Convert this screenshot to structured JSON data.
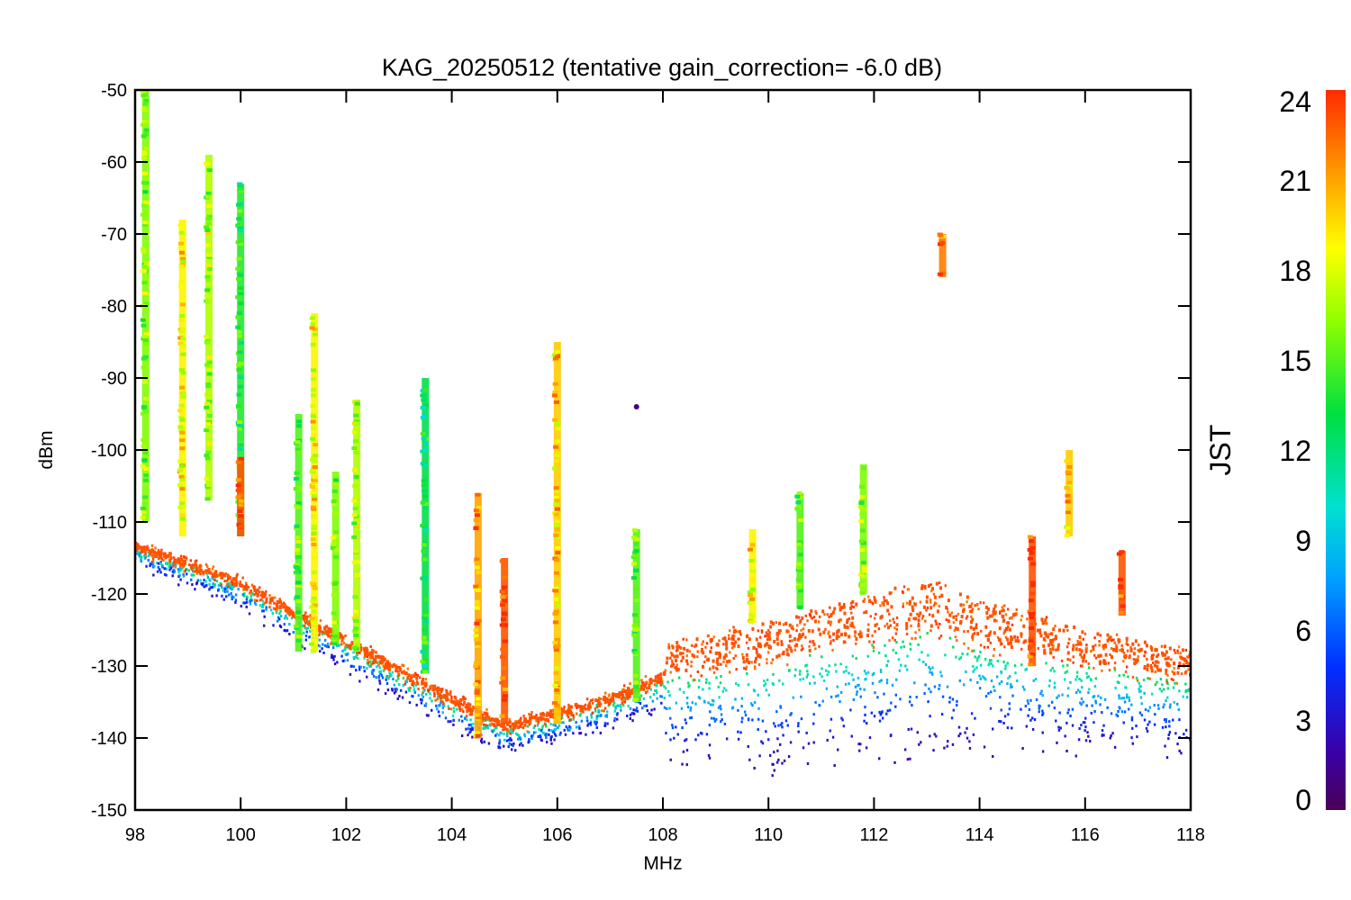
{
  "chart_data": {
    "type": "scatter",
    "title": "KAG_20250512 (tentative gain_correction= -6.0 dB)",
    "xlabel": "MHz",
    "ylabel": "dBm",
    "xlim": [
      98,
      118
    ],
    "ylim": [
      -150,
      -50
    ],
    "x_ticks": [
      "98",
      "100",
      "102",
      "104",
      "106",
      "108",
      "110",
      "112",
      "114",
      "116",
      "118"
    ],
    "y_ticks": [
      "-50",
      "-60",
      "-70",
      "-80",
      "-90",
      "-100",
      "-110",
      "-120",
      "-130",
      "-140",
      "-150"
    ],
    "grid": false,
    "colorbar": {
      "label": "JST",
      "range": [
        0,
        24
      ],
      "ticks": [
        "24",
        "21",
        "18",
        "15",
        "12",
        "9",
        "6",
        "3",
        "0"
      ],
      "colormap": "rainbow"
    },
    "noise_floor": [
      {
        "x": 98.0,
        "y_day": -113,
        "y_night": -116
      },
      {
        "x": 100.0,
        "y_day": -118,
        "y_night": -122
      },
      {
        "x": 102.0,
        "y_day": -126,
        "y_night": -131
      },
      {
        "x": 104.0,
        "y_day": -134,
        "y_night": -139
      },
      {
        "x": 105.0,
        "y_day": -138,
        "y_night": -142
      },
      {
        "x": 106.0,
        "y_day": -136,
        "y_night": -141
      },
      {
        "x": 107.0,
        "y_day": -134,
        "y_night": -139
      },
      {
        "x": 108.0,
        "y_day": -131,
        "y_night": -136
      },
      {
        "x": 108.05,
        "y_day": -127,
        "y_night": -144
      },
      {
        "x": 110.0,
        "y_day": -124,
        "y_night": -145
      },
      {
        "x": 112.0,
        "y_day": -120,
        "y_night": -144
      },
      {
        "x": 113.0,
        "y_day": -118,
        "y_night": -144
      },
      {
        "x": 114.0,
        "y_day": -121,
        "y_night": -143
      },
      {
        "x": 116.0,
        "y_day": -125,
        "y_night": -143
      },
      {
        "x": 118.0,
        "y_day": -128,
        "y_night": -143
      }
    ],
    "signals": [
      {
        "x": 98.2,
        "y_top": -50,
        "y_bottom": -110,
        "jst": 16
      },
      {
        "x": 98.9,
        "y_top": -68,
        "y_bottom": -112,
        "jst": 19
      },
      {
        "x": 99.4,
        "y_top": -59,
        "y_bottom": -107,
        "jst": 17
      },
      {
        "x": 100.0,
        "y_top": -63,
        "y_bottom": -112,
        "jst": 14
      },
      {
        "x": 100.0,
        "y_top": -101,
        "y_bottom": -112,
        "jst": 23
      },
      {
        "x": 101.1,
        "y_top": -95,
        "y_bottom": -128,
        "jst": 15
      },
      {
        "x": 101.4,
        "y_top": -81,
        "y_bottom": -128,
        "jst": 19
      },
      {
        "x": 101.8,
        "y_top": -103,
        "y_bottom": -127,
        "jst": 16
      },
      {
        "x": 102.2,
        "y_top": -93,
        "y_bottom": -128,
        "jst": 17
      },
      {
        "x": 103.5,
        "y_top": -90,
        "y_bottom": -131,
        "jst": 13
      },
      {
        "x": 104.5,
        "y_top": -106,
        "y_bottom": -140,
        "jst": 21
      },
      {
        "x": 105.0,
        "y_top": -115,
        "y_bottom": -138,
        "jst": 23
      },
      {
        "x": 106.0,
        "y_top": -85,
        "y_bottom": -138,
        "jst": 20
      },
      {
        "x": 107.5,
        "y_top": -111,
        "y_bottom": -135,
        "jst": 15
      },
      {
        "x": 107.5,
        "y_top": -94,
        "y_bottom": -94,
        "jst": 1
      },
      {
        "x": 109.7,
        "y_top": -111,
        "y_bottom": -124,
        "jst": 19
      },
      {
        "x": 110.6,
        "y_top": -106,
        "y_bottom": -122,
        "jst": 15
      },
      {
        "x": 111.8,
        "y_top": -102,
        "y_bottom": -120,
        "jst": 16
      },
      {
        "x": 113.3,
        "y_top": -70,
        "y_bottom": -76,
        "jst": 22
      },
      {
        "x": 115.0,
        "y_top": -112,
        "y_bottom": -130,
        "jst": 23
      },
      {
        "x": 115.7,
        "y_top": -100,
        "y_bottom": -112,
        "jst": 20
      },
      {
        "x": 116.7,
        "y_top": -114,
        "y_bottom": -123,
        "jst": 23
      }
    ]
  }
}
